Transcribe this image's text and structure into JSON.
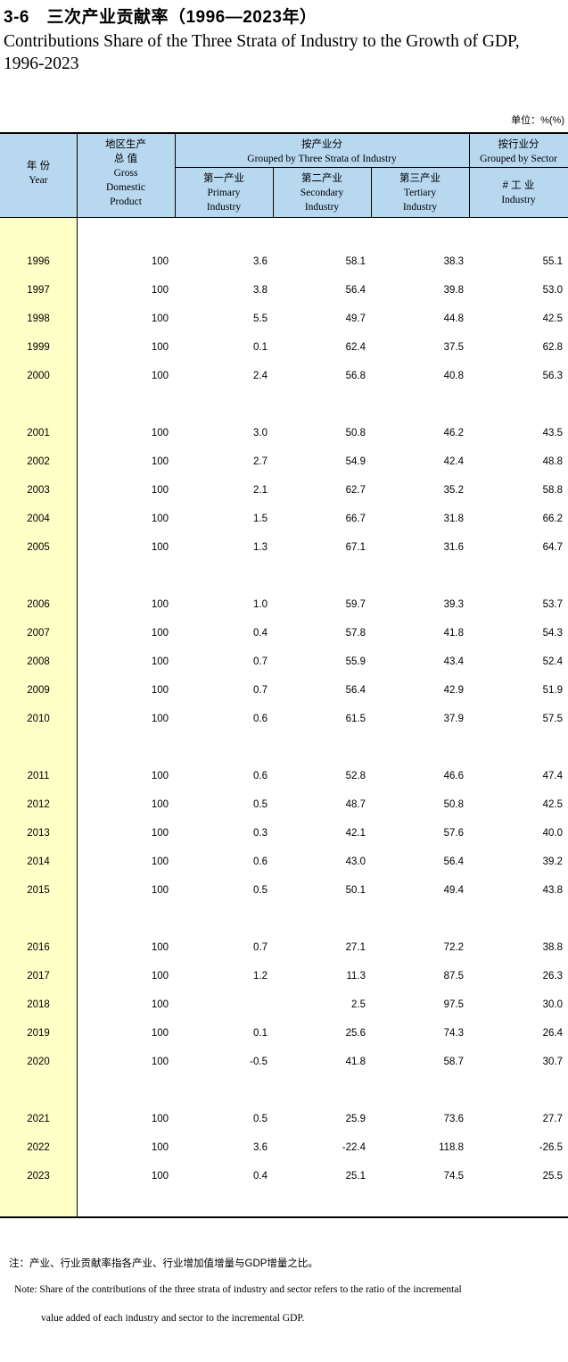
{
  "title_cn": "3-6　三次产业贡献率（1996—2023年）",
  "title_en": "Contributions Share of the Three Strata of Industry to the Growth of GDP, 1996-2023",
  "unit": "单位：%(%)",
  "header": {
    "year_cn": "年 份",
    "year_en": "Year",
    "gdp_cn1": "地区生产",
    "gdp_cn2": "总 值",
    "gdp_en1": "Gross",
    "gdp_en2": "Domestic",
    "gdp_en3": "Product",
    "strata_cn": "按产业分",
    "strata_en": "Grouped by Three Strata of Industry",
    "sector_cn": "按行业分",
    "sector_en": "Grouped by Sector",
    "primary_cn": "第一产业",
    "primary_en1": "Primary",
    "primary_en2": "Industry",
    "secondary_cn": "第二产业",
    "secondary_en1": "Secondary",
    "secondary_en2": "Industry",
    "tertiary_cn": "第三产业",
    "tertiary_en1": "Tertiary",
    "tertiary_en2": "Industry",
    "industry_cn": "# 工 业",
    "industry_en": "Industry"
  },
  "rows": [
    {
      "year": "1996",
      "gdp": "100",
      "primary": "3.6",
      "secondary": "58.1",
      "tertiary": "38.3",
      "industry": "55.1"
    },
    {
      "year": "1997",
      "gdp": "100",
      "primary": "3.8",
      "secondary": "56.4",
      "tertiary": "39.8",
      "industry": "53.0"
    },
    {
      "year": "1998",
      "gdp": "100",
      "primary": "5.5",
      "secondary": "49.7",
      "tertiary": "44.8",
      "industry": "42.5"
    },
    {
      "year": "1999",
      "gdp": "100",
      "primary": "0.1",
      "secondary": "62.4",
      "tertiary": "37.5",
      "industry": "62.8"
    },
    {
      "year": "2000",
      "gdp": "100",
      "primary": "2.4",
      "secondary": "56.8",
      "tertiary": "40.8",
      "industry": "56.3"
    },
    {
      "year": "2001",
      "gdp": "100",
      "primary": "3.0",
      "secondary": "50.8",
      "tertiary": "46.2",
      "industry": "43.5"
    },
    {
      "year": "2002",
      "gdp": "100",
      "primary": "2.7",
      "secondary": "54.9",
      "tertiary": "42.4",
      "industry": "48.8"
    },
    {
      "year": "2003",
      "gdp": "100",
      "primary": "2.1",
      "secondary": "62.7",
      "tertiary": "35.2",
      "industry": "58.8"
    },
    {
      "year": "2004",
      "gdp": "100",
      "primary": "1.5",
      "secondary": "66.7",
      "tertiary": "31.8",
      "industry": "66.2"
    },
    {
      "year": "2005",
      "gdp": "100",
      "primary": "1.3",
      "secondary": "67.1",
      "tertiary": "31.6",
      "industry": "64.7"
    },
    {
      "year": "2006",
      "gdp": "100",
      "primary": "1.0",
      "secondary": "59.7",
      "tertiary": "39.3",
      "industry": "53.7"
    },
    {
      "year": "2007",
      "gdp": "100",
      "primary": "0.4",
      "secondary": "57.8",
      "tertiary": "41.8",
      "industry": "54.3"
    },
    {
      "year": "2008",
      "gdp": "100",
      "primary": "0.7",
      "secondary": "55.9",
      "tertiary": "43.4",
      "industry": "52.4"
    },
    {
      "year": "2009",
      "gdp": "100",
      "primary": "0.7",
      "secondary": "56.4",
      "tertiary": "42.9",
      "industry": "51.9"
    },
    {
      "year": "2010",
      "gdp": "100",
      "primary": "0.6",
      "secondary": "61.5",
      "tertiary": "37.9",
      "industry": "57.5"
    },
    {
      "year": "2011",
      "gdp": "100",
      "primary": "0.6",
      "secondary": "52.8",
      "tertiary": "46.6",
      "industry": "47.4"
    },
    {
      "year": "2012",
      "gdp": "100",
      "primary": "0.5",
      "secondary": "48.7",
      "tertiary": "50.8",
      "industry": "42.5"
    },
    {
      "year": "2013",
      "gdp": "100",
      "primary": "0.3",
      "secondary": "42.1",
      "tertiary": "57.6",
      "industry": "40.0"
    },
    {
      "year": "2014",
      "gdp": "100",
      "primary": "0.6",
      "secondary": "43.0",
      "tertiary": "56.4",
      "industry": "39.2"
    },
    {
      "year": "2015",
      "gdp": "100",
      "primary": "0.5",
      "secondary": "50.1",
      "tertiary": "49.4",
      "industry": "43.8"
    },
    {
      "year": "2016",
      "gdp": "100",
      "primary": "0.7",
      "secondary": "27.1",
      "tertiary": "72.2",
      "industry": "38.8"
    },
    {
      "year": "2017",
      "gdp": "100",
      "primary": "1.2",
      "secondary": "11.3",
      "tertiary": "87.5",
      "industry": "26.3"
    },
    {
      "year": "2018",
      "gdp": "100",
      "primary": "",
      "secondary": "2.5",
      "tertiary": "97.5",
      "industry": "30.0"
    },
    {
      "year": "2019",
      "gdp": "100",
      "primary": "0.1",
      "secondary": "25.6",
      "tertiary": "74.3",
      "industry": "26.4"
    },
    {
      "year": "2020",
      "gdp": "100",
      "primary": "-0.5",
      "secondary": "41.8",
      "tertiary": "58.7",
      "industry": "30.7"
    },
    {
      "year": "2021",
      "gdp": "100",
      "primary": "0.5",
      "secondary": "25.9",
      "tertiary": "73.6",
      "industry": "27.7"
    },
    {
      "year": "2022",
      "gdp": "100",
      "primary": "3.6",
      "secondary": "-22.4",
      "tertiary": "118.8",
      "industry": "-26.5"
    },
    {
      "year": "2023",
      "gdp": "100",
      "primary": "0.4",
      "secondary": "25.1",
      "tertiary": "74.5",
      "industry": "25.5"
    }
  ],
  "note_cn": "注：产业、行业贡献率指各产业、行业增加值增量与GDP增量之比。",
  "note_en1": "Note: Share of the contributions of the three strata of industry and sector refers to the ratio of the incremental",
  "note_en2": "value added of each industry and sector to the incremental GDP."
}
